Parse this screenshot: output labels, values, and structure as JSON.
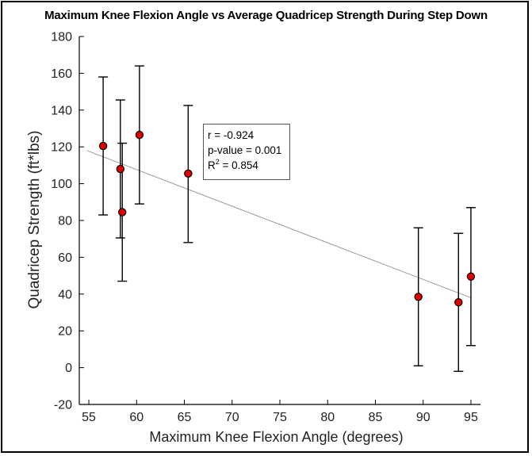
{
  "chart_data": {
    "type": "scatter",
    "title": "Maximum Knee Flexion Angle vs Average Quadricep Strength During Step Down",
    "xlabel": "Maximum Knee Flexion Angle (degrees)",
    "ylabel": "Quadricep Strength (ft*lbs)",
    "xlim": [
      54,
      96
    ],
    "ylim": [
      -20,
      180
    ],
    "xticks": [
      55,
      60,
      65,
      70,
      75,
      80,
      85,
      90,
      95
    ],
    "yticks": [
      -20,
      0,
      20,
      40,
      60,
      80,
      100,
      120,
      140,
      160,
      180
    ],
    "points": [
      {
        "x": 56.5,
        "y": 120.5,
        "lower": 83,
        "upper": 158
      },
      {
        "x": 58.3,
        "y": 108,
        "lower": 70.5,
        "upper": 145.5
      },
      {
        "x": 58.5,
        "y": 84.5,
        "lower": 47,
        "upper": 122
      },
      {
        "x": 60.3,
        "y": 126.5,
        "lower": 89,
        "upper": 164
      },
      {
        "x": 65.4,
        "y": 105.5,
        "lower": 68,
        "upper": 142.5
      },
      {
        "x": 89.5,
        "y": 38.5,
        "lower": 1,
        "upper": 76
      },
      {
        "x": 93.7,
        "y": 35.5,
        "lower": -2,
        "upper": 73
      },
      {
        "x": 95,
        "y": 49.5,
        "lower": 12,
        "upper": 87
      }
    ],
    "trendline": {
      "x": [
        54.8,
        95
      ],
      "y": [
        118,
        38
      ]
    },
    "point_color": "#e00000",
    "line_color": "#999999",
    "stats": {
      "r": "r = -0.924",
      "p": "p-value = 0.001",
      "r2_prefix": "R",
      "r2_sup": "2",
      "r2_value": " = 0.854"
    }
  }
}
